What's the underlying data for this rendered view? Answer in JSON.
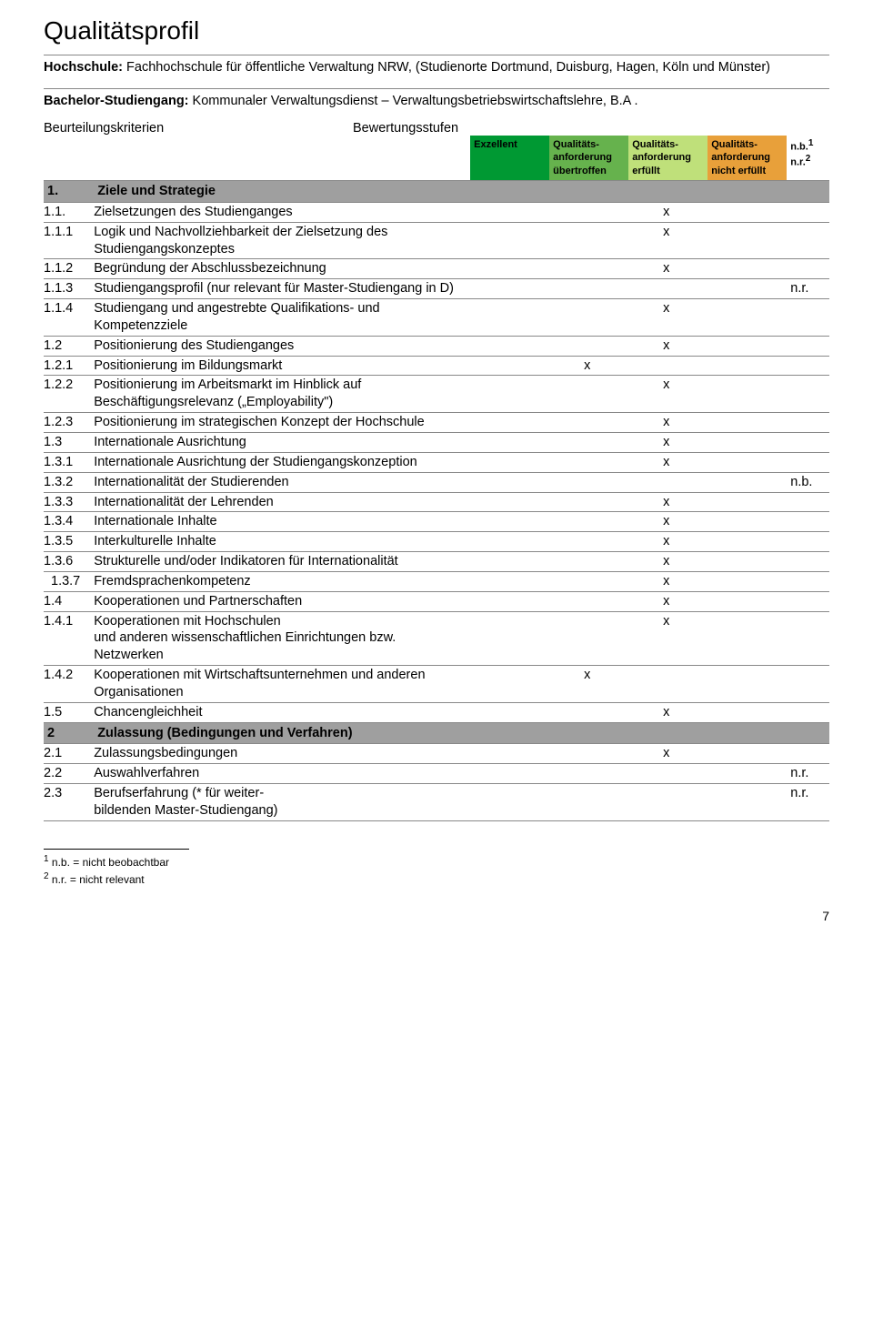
{
  "title": "Qualitätsprofil",
  "intro": {
    "hochschule_label": "Hochschule:",
    "hochschule_value": "Fachhochschule für öffentliche Verwaltung NRW, (Studienorte Dortmund, Duisburg, Hagen, Köln und Münster)",
    "studiengang_label": "Bachelor-Studiengang:",
    "studiengang_value": "Kommunaler Verwaltungsdienst – Verwaltungsbetriebswirtschaftslehre, B.A ."
  },
  "bk": {
    "left": "Beurteilungskriterien",
    "right": "Bewertungsstufen"
  },
  "header": {
    "exzellent": "Exzellent",
    "ubertroffen": "Qualitäts-\nanforderung\nübertroffen",
    "erfullt": "Qualitäts-\nanforderung\nerfüllt",
    "nicht_erfullt": "Qualitäts-\nanforderung\nnicht erfüllt",
    "nb": "n.b.",
    "nr": "n.r."
  },
  "rows": [
    {
      "type": "section",
      "num": "1.",
      "desc": "Ziele und Strategie"
    },
    {
      "num": "1.1.",
      "desc": "Zielsetzungen des Studienganges",
      "c3": "x"
    },
    {
      "num": "1.1.1",
      "desc": "Logik und Nachvollziehbarkeit der Zielsetzung des Studiengangskonzeptes",
      "c3": "x"
    },
    {
      "num": "1.1.2",
      "desc": "Begründung der Abschlussbezeichnung",
      "c3": "x"
    },
    {
      "num": "1.1.3",
      "desc": "Studiengangsprofil (nur relevant für Master-Studiengang in D)",
      "nb": "n.r."
    },
    {
      "num": "1.1.4",
      "desc": "Studiengang und angestrebte Qualifikations- und Kompetenzziele",
      "c3": "x"
    },
    {
      "num": "1.2",
      "desc": "Positionierung des Studienganges",
      "c3": "x"
    },
    {
      "num": "1.2.1",
      "desc": "Positionierung im Bildungsmarkt",
      "c2": "x"
    },
    {
      "num": "1.2.2",
      "desc": "Positionierung im Arbeitsmarkt im Hinblick auf Beschäftigungsrelevanz („Employability\")",
      "c3": "x"
    },
    {
      "num": "1.2.3",
      "desc": "Positionierung im strategischen Konzept der Hochschule",
      "c3": "x"
    },
    {
      "num": "1.3",
      "desc": "Internationale Ausrichtung",
      "c3": "x"
    },
    {
      "num": "1.3.1",
      "desc": "Internationale Ausrichtung der Studiengangskonzeption",
      "c3": "x"
    },
    {
      "num": "1.3.2",
      "desc": "Internationalität der Studierenden",
      "nb": "n.b."
    },
    {
      "num": "1.3.3",
      "desc": "Internationalität der Lehrenden",
      "c3": "x"
    },
    {
      "num": "1.3.4",
      "desc": "Internationale Inhalte",
      "c3": "x"
    },
    {
      "num": "1.3.5",
      "desc": "Interkulturelle Inhalte",
      "c3": "x"
    },
    {
      "num": "1.3.6",
      "desc": "Strukturelle und/oder Indikatoren für Internationalität",
      "c3": "x"
    },
    {
      "num": "1.3.7",
      "desc": "Fremdsprachenkompetenz",
      "c3": "x",
      "indent": true
    },
    {
      "num": "1.4",
      "desc": "Kooperationen und Partnerschaften",
      "c3": "x"
    },
    {
      "num": "1.4.1",
      "desc": "Kooperationen mit Hochschulen\nund anderen wissenschaftlichen Einrichtungen bzw. Netzwerken",
      "c3": "x"
    },
    {
      "num": "1.4.2",
      "desc": "Kooperationen mit Wirtschaftsunternehmen und anderen Organisationen",
      "c2": "x"
    },
    {
      "num": "1.5",
      "desc": "Chancengleichheit",
      "c3": "x"
    },
    {
      "type": "section",
      "num": "2",
      "desc": "Zulassung (Bedingungen und Verfahren)"
    },
    {
      "num": "2.1",
      "desc": "Zulassungsbedingungen",
      "c3": "x"
    },
    {
      "num": "2.2",
      "desc": "Auswahlverfahren",
      "nb": "n.r."
    },
    {
      "num": "2.3",
      "desc": "Berufserfahrung (* für weiter-\nbildenden Master-Studiengang)",
      "nb": "n.r."
    }
  ],
  "footnotes": {
    "f1": "n.b. = nicht beobachtbar",
    "f2": "n.r. = nicht relevant"
  },
  "pagenum": "7",
  "colors": {
    "exzellent": "#009933",
    "ubertroffen": "#66b24d",
    "erfullt": "#bfe07a",
    "nicht_erfullt": "#e8a03a",
    "section_bg": "#9f9f9f"
  }
}
